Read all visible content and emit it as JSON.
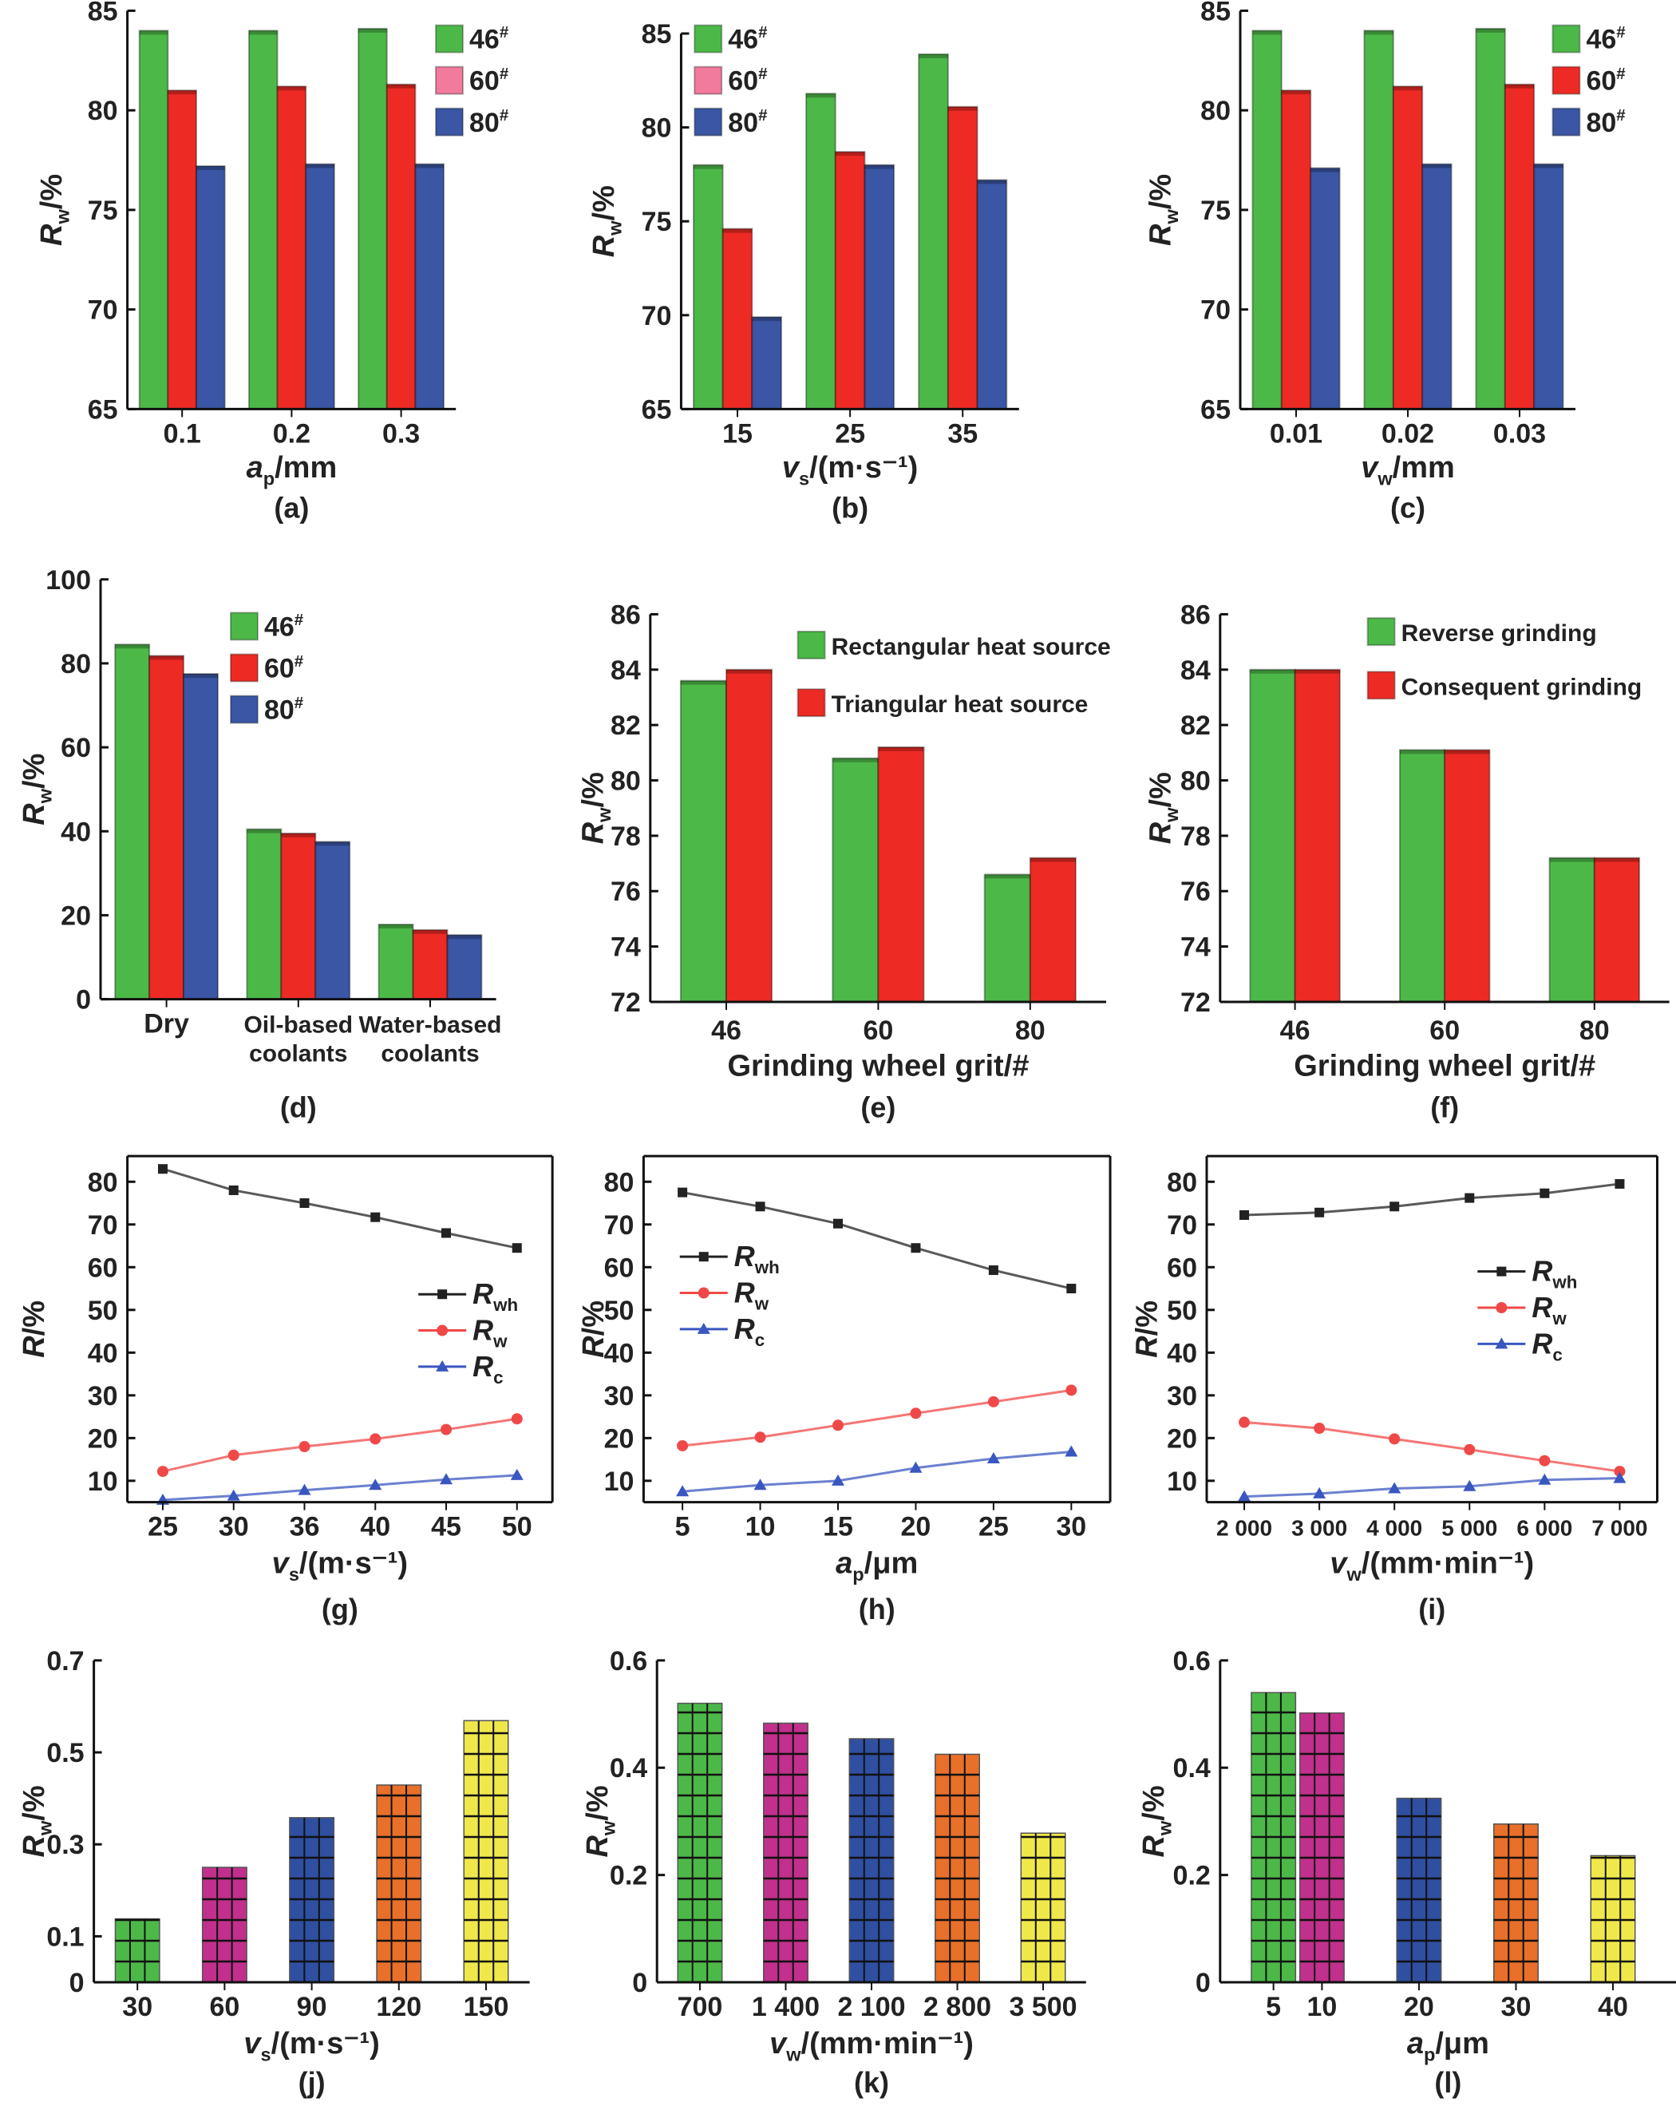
{
  "chart_data": [
    {
      "panel": "(a)",
      "type": "bar",
      "categories": [
        "0.1",
        "0.2",
        "0.3"
      ],
      "series": [
        {
          "name": "46#",
          "values": [
            84.0,
            84.0,
            84.1
          ],
          "color": "#4cb848",
          "legend_color": "#4cb848"
        },
        {
          "name": "60#",
          "values": [
            81.0,
            81.2,
            81.3
          ],
          "color": "#ee2a24",
          "legend_color": "#f27a9c"
        },
        {
          "name": "80#",
          "values": [
            77.2,
            77.3,
            77.3
          ],
          "color": "#3a56a5",
          "legend_color": "#3a56a5"
        }
      ],
      "ylim": [
        65,
        85
      ],
      "yticks": [
        65,
        70,
        75,
        80,
        85
      ],
      "xlabel": [
        "a",
        "p",
        "/mm"
      ],
      "ylabel": [
        "R",
        "w",
        "/%"
      ],
      "legend": "top-right"
    },
    {
      "panel": "(b)",
      "type": "bar",
      "categories": [
        "15",
        "25",
        "35"
      ],
      "series": [
        {
          "name": "46#",
          "values": [
            78.0,
            81.8,
            83.9
          ],
          "color": "#4cb848",
          "legend_color": "#4cb848"
        },
        {
          "name": "60#",
          "values": [
            74.6,
            78.7,
            81.1
          ],
          "color": "#ee2a24",
          "legend_color": "#f27a9c"
        },
        {
          "name": "80#",
          "values": [
            69.9,
            78.0,
            77.2
          ],
          "color": "#3a56a5",
          "legend_color": "#3a56a5"
        }
      ],
      "ylim": [
        65,
        85
      ],
      "yticks": [
        65,
        70,
        75,
        80,
        85
      ],
      "xlabel": [
        "v",
        "s",
        "/(m·s⁻¹)"
      ],
      "ylabel": [
        "R",
        "w",
        "/%"
      ],
      "legend": "top-left"
    },
    {
      "panel": "(c)",
      "type": "bar",
      "categories": [
        "0.01",
        "0.02",
        "0.03"
      ],
      "series": [
        {
          "name": "46#",
          "values": [
            84.0,
            84.0,
            84.1
          ],
          "color": "#4cb848",
          "legend_color": "#4cb848"
        },
        {
          "name": "60#",
          "values": [
            81.0,
            81.2,
            81.3
          ],
          "color": "#ee2a24",
          "legend_color": "#ee2a24"
        },
        {
          "name": "80#",
          "values": [
            77.1,
            77.3,
            77.3
          ],
          "color": "#3a56a5",
          "legend_color": "#3a56a5"
        }
      ],
      "ylim": [
        65,
        85
      ],
      "yticks": [
        65,
        70,
        75,
        80,
        85
      ],
      "xlabel": [
        "v",
        "w",
        "/mm"
      ],
      "ylabel": [
        "R",
        "w",
        "/%"
      ],
      "legend": "top-right"
    },
    {
      "panel": "(d)",
      "type": "bar",
      "categories": [
        "Dry",
        "Oil-based\ncoolants",
        "Water-based\ncoolants"
      ],
      "series": [
        {
          "name": "46#",
          "values": [
            84.5,
            40.5,
            17.8
          ],
          "color": "#4cb848",
          "legend_color": "#4cb848"
        },
        {
          "name": "60#",
          "values": [
            81.8,
            39.5,
            16.5
          ],
          "color": "#ee2a24",
          "legend_color": "#ee2a24"
        },
        {
          "name": "80#",
          "values": [
            77.5,
            37.5,
            15.3
          ],
          "color": "#3a56a5",
          "legend_color": "#3a56a5"
        }
      ],
      "ylim": [
        0,
        100
      ],
      "yticks": [
        0,
        20,
        40,
        60,
        80,
        100
      ],
      "xlabel": "",
      "ylabel": [
        "R",
        "w",
        "/%"
      ],
      "legend": "top-center"
    },
    {
      "panel": "(e)",
      "type": "bar",
      "categories": [
        "46",
        "60",
        "80"
      ],
      "series": [
        {
          "name": "Rectangular heat source",
          "values": [
            83.6,
            80.8,
            76.6
          ],
          "color": "#4cb848",
          "legend_color": "#4cb848"
        },
        {
          "name": "Triangular heat source",
          "values": [
            84.0,
            81.2,
            77.2
          ],
          "color": "#ee2a24",
          "legend_color": "#ee2a24"
        }
      ],
      "ylim": [
        72,
        86
      ],
      "yticks": [
        72,
        74,
        76,
        78,
        80,
        82,
        84,
        86
      ],
      "xlabel": "Grinding wheel grit/#",
      "ylabel": [
        "R",
        "w",
        "/%"
      ],
      "legend": "top-right"
    },
    {
      "panel": "(f)",
      "type": "bar",
      "categories": [
        "46",
        "60",
        "80"
      ],
      "series": [
        {
          "name": "Reverse grinding",
          "values": [
            84.0,
            81.1,
            77.2
          ],
          "color": "#4cb848",
          "legend_color": "#4cb848"
        },
        {
          "name": "Consequent grinding",
          "values": [
            84.0,
            81.1,
            77.2
          ],
          "color": "#ee2a24",
          "legend_color": "#ee2a24"
        }
      ],
      "ylim": [
        72,
        86
      ],
      "yticks": [
        72,
        74,
        76,
        78,
        80,
        82,
        84,
        86
      ],
      "xlabel": "Grinding wheel grit/#",
      "ylabel": [
        "R",
        "w",
        "/%"
      ],
      "legend": "top-right"
    },
    {
      "panel": "(g)",
      "type": "line",
      "categories": [
        "25",
        "30",
        "36",
        "40",
        "45",
        "50"
      ],
      "series": [
        {
          "name": [
            "R",
            "wh"
          ],
          "values": [
            83.0,
            78.0,
            75.0,
            71.7,
            68.0,
            64.5
          ],
          "color": "#222222",
          "marker": "square"
        },
        {
          "name": [
            "R",
            "w"
          ],
          "values": [
            12.2,
            16.0,
            18.0,
            19.8,
            22.0,
            24.5
          ],
          "color": "#f04848",
          "marker": "circle"
        },
        {
          "name": [
            "R",
            "c"
          ],
          "values": [
            5.5,
            6.5,
            7.8,
            9.0,
            10.3,
            11.3
          ],
          "color": "#3a56c0",
          "marker": "triangle"
        }
      ],
      "ylim": [
        5,
        86
      ],
      "yticks": [
        10,
        20,
        30,
        40,
        50,
        60,
        70,
        80
      ],
      "xlabel": [
        "v",
        "s",
        "/(m·s⁻¹)"
      ],
      "ylabel": [
        "R",
        "",
        "/%"
      ],
      "legend": "center-right"
    },
    {
      "panel": "(h)",
      "type": "line",
      "categories": [
        "5",
        "10",
        "15",
        "20",
        "25",
        "30"
      ],
      "series": [
        {
          "name": [
            "R",
            "wh"
          ],
          "values": [
            77.5,
            74.2,
            70.2,
            64.5,
            59.3,
            55.0
          ],
          "color": "#222222",
          "marker": "square"
        },
        {
          "name": [
            "R",
            "w"
          ],
          "values": [
            18.2,
            20.2,
            23.0,
            25.8,
            28.5,
            31.2
          ],
          "color": "#f04848",
          "marker": "circle"
        },
        {
          "name": [
            "R",
            "c"
          ],
          "values": [
            7.5,
            9.0,
            10.0,
            13.0,
            15.2,
            16.8
          ],
          "color": "#3a56c0",
          "marker": "triangle"
        }
      ],
      "ylim": [
        5,
        86
      ],
      "yticks": [
        10,
        20,
        30,
        40,
        50,
        60,
        70,
        80
      ],
      "xlabel": [
        "a",
        "p",
        "/μm"
      ],
      "ylabel": [
        "R",
        "",
        "/%"
      ],
      "legend": "center-left"
    },
    {
      "panel": "(i)",
      "type": "line",
      "categories": [
        "2 000",
        "3 000",
        "4 000",
        "5 000",
        "6 000",
        "7 000"
      ],
      "series": [
        {
          "name": [
            "R",
            "wh"
          ],
          "values": [
            72.2,
            72.8,
            74.2,
            76.2,
            77.3,
            79.5
          ],
          "color": "#222222",
          "marker": "square"
        },
        {
          "name": [
            "R",
            "w"
          ],
          "values": [
            23.7,
            22.3,
            19.8,
            17.3,
            14.7,
            12.2
          ],
          "color": "#f04848",
          "marker": "circle"
        },
        {
          "name": [
            "R",
            "c"
          ],
          "values": [
            6.3,
            7.0,
            8.2,
            8.7,
            10.2,
            10.6
          ],
          "color": "#3a56c0",
          "marker": "triangle"
        }
      ],
      "ylim": [
        5,
        86
      ],
      "yticks": [
        10,
        20,
        30,
        40,
        50,
        60,
        70,
        80
      ],
      "xlabel": [
        "v",
        "w",
        "/(mm·min⁻¹)"
      ],
      "ylabel": [
        "R",
        "",
        "/%"
      ],
      "legend": "center-right"
    },
    {
      "panel": "(j)",
      "type": "bar",
      "categories": [
        "30",
        "60",
        "90",
        "120",
        "150"
      ],
      "values": [
        0.138,
        0.25,
        0.358,
        0.429,
        0.569
      ],
      "colors": [
        "#4cb848",
        "#c0308c",
        "#2f4fa0",
        "#e8702a",
        "#f0e84a"
      ],
      "ylim": [
        0,
        0.7
      ],
      "yticks": [
        0,
        0.1,
        0.3,
        0.5,
        0.7
      ],
      "xlabel": [
        "v",
        "s",
        "/(m·s⁻¹)"
      ],
      "ylabel": [
        "R",
        "w",
        "/%"
      ]
    },
    {
      "panel": "(k)",
      "type": "bar",
      "categories": [
        "700",
        "1 400",
        "2 100",
        "2 800",
        "3 500"
      ],
      "values": [
        0.52,
        0.483,
        0.454,
        0.425,
        0.278
      ],
      "colors": [
        "#4cb848",
        "#c0308c",
        "#2f4fa0",
        "#e8702a",
        "#f0e84a"
      ],
      "ylim": [
        0,
        0.6
      ],
      "yticks": [
        0,
        0.2,
        0.4,
        0.6
      ],
      "xlabel": [
        "v",
        "w",
        "/(mm·min⁻¹)"
      ],
      "ylabel": [
        "R",
        "w",
        "/%"
      ]
    },
    {
      "panel": "(l)",
      "type": "bar",
      "categories": [
        "5",
        "10",
        "20",
        "30",
        "40"
      ],
      "x": [
        5,
        10,
        20,
        30,
        40
      ],
      "values": [
        0.54,
        0.502,
        0.343,
        0.295,
        0.236
      ],
      "colors": [
        "#4cb848",
        "#c0308c",
        "#2f4fa0",
        "#e8702a",
        "#f0e84a"
      ],
      "ylim": [
        0,
        0.6
      ],
      "yticks": [
        0,
        0.2,
        0.4,
        0.6
      ],
      "xlabel": [
        "a",
        "p",
        "/μm"
      ],
      "ylabel": [
        "R",
        "w",
        "/%"
      ]
    }
  ]
}
